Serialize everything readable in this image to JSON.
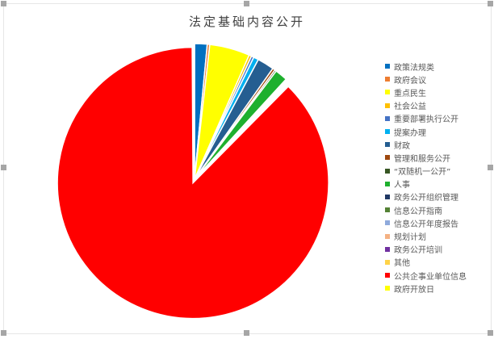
{
  "chart_data": {
    "type": "pie",
    "title": "法定基础内容公开",
    "legend_position": "right",
    "exploded": "公共企事业单位信息",
    "categories": [
      "政策法规类",
      "政府会议",
      "重点民生",
      "社会公益",
      "重要部署执行公开",
      "提案办理",
      "财政",
      "管理和服务公开",
      "“双随机一公开”",
      "人事",
      "政务公开组织管理",
      "信息公开指南",
      "信息公开年度报告",
      "规划计划",
      "政务公开培训",
      "其他",
      "公共企事业单位信息",
      "政府开放日"
    ],
    "values": [
      1.5,
      0.3,
      4.8,
      0.3,
      0.3,
      0.6,
      2.0,
      0.3,
      0.2,
      1.5,
      0.1,
      0.1,
      0.1,
      0.1,
      0.1,
      0.1,
      87.5,
      0.1
    ],
    "colors": [
      "#0070C0",
      "#ED7D31",
      "#FFFF00",
      "#FFC000",
      "#4472C4",
      "#00B0F0",
      "#255E91",
      "#9E480E",
      "#375623",
      "#1EB02E",
      "#203864",
      "#548235",
      "#8FAADC",
      "#F4B183",
      "#7030A0",
      "#FFD347",
      "#FF0000",
      "#FFFF00"
    ]
  }
}
